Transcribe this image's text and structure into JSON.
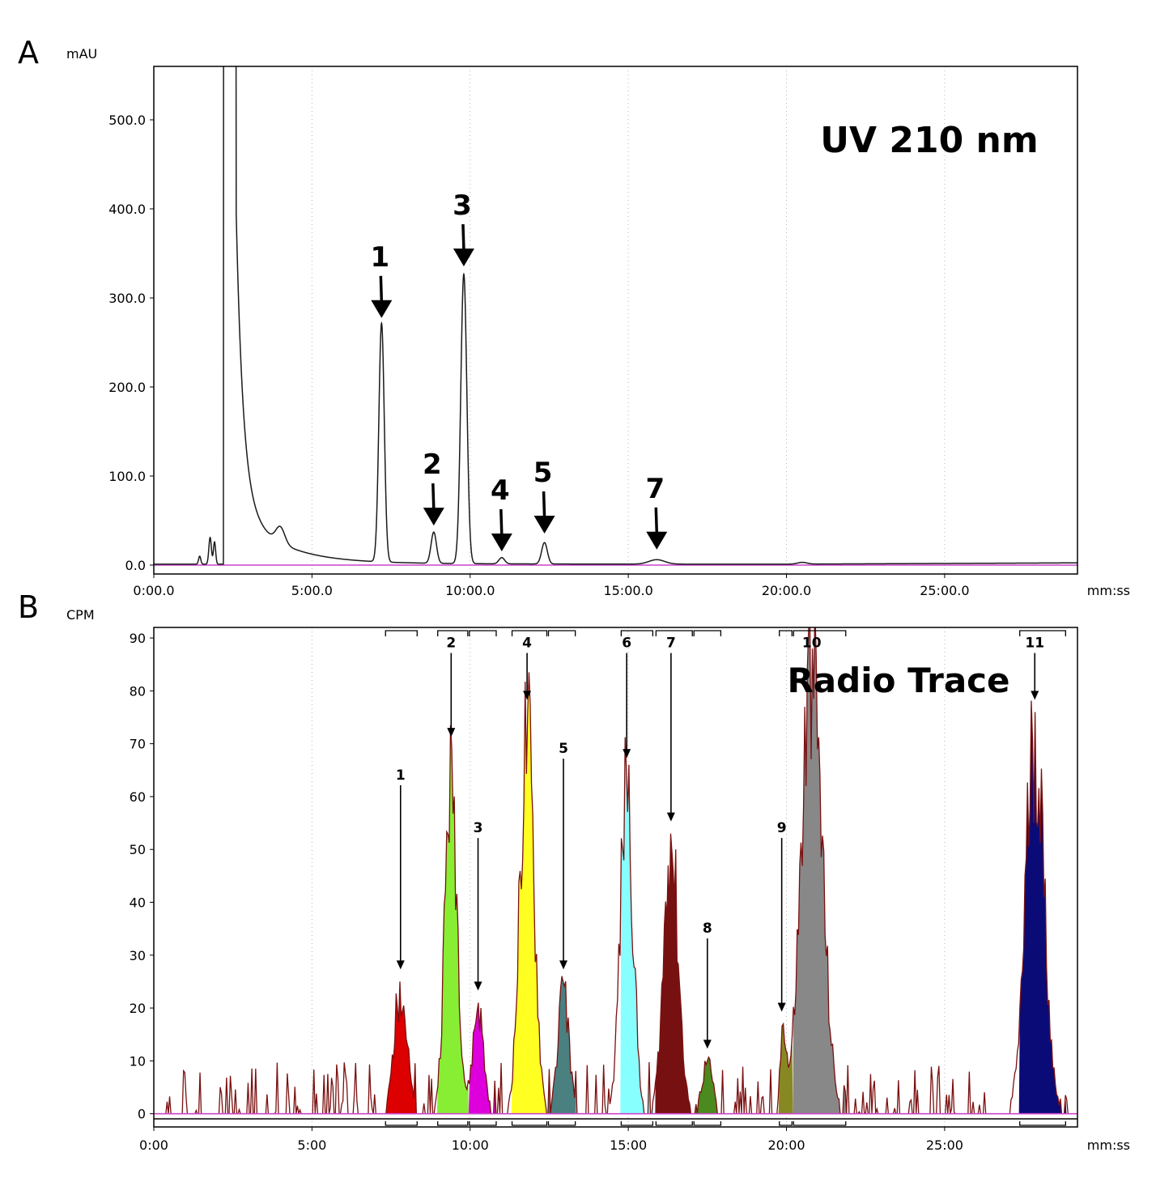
{
  "chart_data": [
    {
      "panel_letter": "A",
      "type": "line",
      "title": "UV 210 nm",
      "ylabel": "mAU",
      "xlabel": "mm:ss",
      "xlim": [
        0,
        29.2
      ],
      "ylim": [
        -10,
        560
      ],
      "yticks": [
        0,
        100,
        200,
        300,
        400,
        500
      ],
      "ytick_labels": [
        "0.0",
        "100.0",
        "200.0",
        "300.0",
        "400.0",
        "500.0"
      ],
      "xticks": [
        0,
        5,
        10,
        15,
        20,
        25
      ],
      "xtick_labels": [
        "0:00.0",
        "5:00.0",
        "10:00.0",
        "15:00.0",
        "20:00.0",
        "25:00.0"
      ],
      "grid": "vertical dotted",
      "baseline": 1,
      "series": [
        {
          "color": "#1a1a1a",
          "peaks": [
            {
              "t": 1.45,
              "h": 9,
              "w": 0.035
            },
            {
              "t": 1.78,
              "h": 30,
              "w": 0.04
            },
            {
              "t": 1.92,
              "h": 25,
              "w": 0.035
            },
            {
              "t": 7.2,
              "h": 268,
              "w": 0.085
            },
            {
              "t": 8.85,
              "h": 35,
              "w": 0.085
            },
            {
              "t": 9.8,
              "h": 325,
              "w": 0.095
            },
            {
              "t": 11.0,
              "h": 7,
              "w": 0.09
            },
            {
              "t": 12.35,
              "h": 24,
              "w": 0.09
            },
            {
              "t": 15.9,
              "h": 5,
              "w": 0.25
            },
            {
              "t": 20.5,
              "h": 2,
              "w": 0.15
            }
          ],
          "solvent_front": {
            "t_start": 2.2,
            "t_end": 2.6,
            "h_tail": 120
          }
        },
        {
          "color": "#cc44cc",
          "constant": 0
        }
      ],
      "annotations": [
        {
          "label": "1",
          "t": 7.2,
          "y": 272
        },
        {
          "label": "2",
          "t": 8.85,
          "y": 39
        },
        {
          "label": "3",
          "t": 9.8,
          "y": 330
        },
        {
          "label": "4",
          "t": 11.0,
          "y": 10
        },
        {
          "label": "5",
          "t": 12.35,
          "y": 30
        },
        {
          "label": "7",
          "t": 15.9,
          "y": 12
        }
      ]
    },
    {
      "panel_letter": "B",
      "type": "area",
      "title": "Radio Trace",
      "ylabel": "CPM",
      "xlabel": "mm:ss",
      "xlim": [
        0,
        29.2
      ],
      "ylim": [
        -2.5,
        92
      ],
      "yticks": [
        0,
        10,
        20,
        30,
        40,
        50,
        60,
        70,
        80,
        90
      ],
      "ytick_labels": [
        "0",
        "10",
        "20",
        "30",
        "40",
        "50",
        "60",
        "70",
        "80",
        "90"
      ],
      "xticks": [
        0,
        5,
        10,
        15,
        20,
        25
      ],
      "xtick_labels": [
        "0:00",
        "5:00",
        "10:00",
        "15:00",
        "20:00",
        "25:00"
      ],
      "grid": "vertical dotted",
      "series": [
        {
          "label": "1",
          "fill": "#dd0000",
          "t_start": 7.3,
          "t_end": 8.35,
          "apex_t": 7.8,
          "apex_h": 25
        },
        {
          "label": "2",
          "fill": "#88ee33",
          "t_start": 8.95,
          "t_end": 9.95,
          "apex_t": 9.4,
          "apex_h": 69
        },
        {
          "label": "3",
          "fill": "#dd00dd",
          "t_start": 9.95,
          "t_end": 10.85,
          "apex_t": 10.25,
          "apex_h": 21
        },
        {
          "label": "4",
          "fill": "#ffff22",
          "t_start": 11.3,
          "t_end": 12.45,
          "apex_t": 11.8,
          "apex_h": 76
        },
        {
          "label": "5",
          "fill": "#4a8080",
          "t_start": 12.45,
          "t_end": 13.35,
          "apex_t": 12.95,
          "apex_h": 25
        },
        {
          "label": "6",
          "fill": "#88ffff",
          "t_start": 14.75,
          "t_end": 15.8,
          "apex_t": 14.95,
          "apex_h": 65
        },
        {
          "label": "7",
          "fill": "#771111",
          "t_start": 15.85,
          "t_end": 17.05,
          "apex_t": 16.35,
          "apex_h": 53
        },
        {
          "label": "8",
          "fill": "#4b8a1e",
          "t_start": 17.05,
          "t_end": 17.95,
          "apex_t": 17.5,
          "apex_h": 10
        },
        {
          "label": "9",
          "fill": "#888822",
          "t_start": 19.75,
          "t_end": 20.2,
          "apex_t": 19.9,
          "apex_h": 17
        },
        {
          "label": "10",
          "fill": "#888888",
          "t_start": 20.2,
          "t_end": 21.9,
          "apex_t": 20.8,
          "apex_h": 88
        },
        {
          "label": "11",
          "fill": "#0b0b77",
          "t_start": 27.35,
          "t_end": 28.85,
          "apex_t": 27.85,
          "apex_h": 76
        }
      ],
      "trace_color": "#7a1010",
      "baseline_color": "#cc44cc",
      "annotations": [
        {
          "label": "1",
          "t": 7.8,
          "y": 27,
          "label_y": 64
        },
        {
          "label": "2",
          "t": 9.4,
          "y": 71,
          "label_y": 89
        },
        {
          "label": "3",
          "t": 10.25,
          "y": 23,
          "label_y": 54
        },
        {
          "label": "4",
          "t": 11.8,
          "y": 78,
          "label_y": 89
        },
        {
          "label": "5",
          "t": 12.95,
          "y": 27,
          "label_y": 69
        },
        {
          "label": "6",
          "t": 14.95,
          "y": 67,
          "label_y": 89
        },
        {
          "label": "7",
          "t": 16.35,
          "y": 55,
          "label_y": 89
        },
        {
          "label": "8",
          "t": 17.5,
          "y": 12,
          "label_y": 35
        },
        {
          "label": "9",
          "t": 19.85,
          "y": 19,
          "label_y": 54
        },
        {
          "label": "10",
          "t": 20.8,
          "y": 89,
          "label_y": 89
        },
        {
          "label": "11",
          "t": 27.85,
          "y": 78,
          "label_y": 89
        }
      ],
      "fraction_brackets": [
        [
          7.3,
          8.35
        ],
        [
          8.95,
          9.95
        ],
        [
          9.95,
          10.85
        ],
        [
          11.3,
          12.45
        ],
        [
          12.45,
          13.35
        ],
        [
          14.75,
          15.8
        ],
        [
          15.85,
          17.05
        ],
        [
          17.05,
          17.95
        ],
        [
          19.75,
          20.2
        ],
        [
          20.2,
          21.9
        ],
        [
          27.35,
          28.85
        ]
      ]
    }
  ]
}
